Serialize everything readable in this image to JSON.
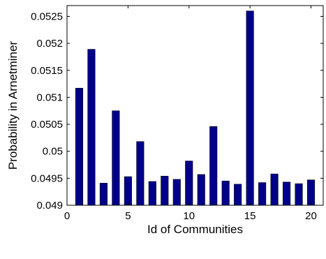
{
  "chart_data": {
    "type": "bar",
    "title": "",
    "xlabel": "Id of Communities",
    "ylabel": "Probability in Arnetminer",
    "x": [
      1,
      2,
      3,
      4,
      5,
      6,
      7,
      8,
      9,
      10,
      11,
      12,
      13,
      14,
      15,
      16,
      17,
      18,
      19,
      20
    ],
    "values": [
      0.05117,
      0.05189,
      0.04941,
      0.05075,
      0.04953,
      0.05018,
      0.04944,
      0.04954,
      0.04948,
      0.04982,
      0.04957,
      0.05046,
      0.04945,
      0.04939,
      0.0526,
      0.04942,
      0.04958,
      0.04943,
      0.0494,
      0.04947
    ],
    "xlim": [
      0,
      21
    ],
    "ylim": [
      0.049,
      0.0527
    ],
    "xticks": [
      0,
      5,
      10,
      15,
      20
    ],
    "xtick_labels": [
      "0",
      "5",
      "10",
      "15",
      "20"
    ],
    "yticks": [
      0.049,
      0.0495,
      0.05,
      0.0505,
      0.051,
      0.0515,
      0.052,
      0.0525
    ],
    "ytick_labels": [
      "0.049",
      "0.0495",
      "0.05",
      "0.0505",
      "0.051",
      "0.0515",
      "0.052",
      "0.0525"
    ],
    "grid": false,
    "legend": "none",
    "bar_color": "#00008B"
  }
}
